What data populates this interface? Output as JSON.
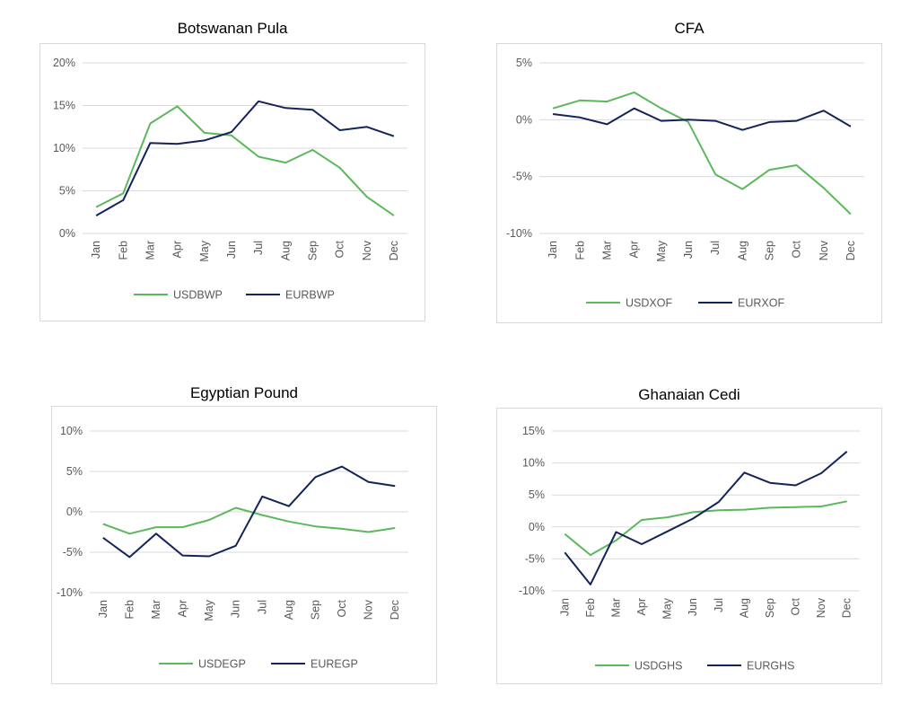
{
  "colors": {
    "usd": "#5cb85c",
    "eur": "#14235a",
    "grid": "#d9d9d9",
    "text": "#595959"
  },
  "chart_data": [
    {
      "type": "line",
      "title": "Botswanan Pula",
      "categories": [
        "Jan",
        "Feb",
        "Mar",
        "Apr",
        "May",
        "Jun",
        "Jul",
        "Aug",
        "Sep",
        "Oct",
        "Nov",
        "Dec"
      ],
      "ylim": [
        0,
        20
      ],
      "yticks": [
        0,
        5,
        10,
        15,
        20
      ],
      "ytick_labels": [
        "0%",
        "5%",
        "10%",
        "15%",
        "20%"
      ],
      "series": [
        {
          "name": "USDBWP",
          "values": [
            3.1,
            4.7,
            12.9,
            14.9,
            11.8,
            11.5,
            9.0,
            8.3,
            9.8,
            7.7,
            4.3,
            2.1
          ]
        },
        {
          "name": "EURBWP",
          "values": [
            2.1,
            3.9,
            10.6,
            10.5,
            10.9,
            11.9,
            15.5,
            14.7,
            14.5,
            12.1,
            12.5,
            11.4
          ]
        }
      ]
    },
    {
      "type": "line",
      "title": "CFA",
      "categories": [
        "Jan",
        "Feb",
        "Mar",
        "Apr",
        "May",
        "Jun",
        "Jul",
        "Aug",
        "Sep",
        "Oct",
        "Nov",
        "Dec"
      ],
      "ylim": [
        -10,
        5
      ],
      "yticks": [
        -10,
        -5,
        0,
        5
      ],
      "ytick_labels": [
        "-10%",
        "-5%",
        "0%",
        "5%"
      ],
      "series": [
        {
          "name": "USDXOF",
          "values": [
            1.0,
            1.7,
            1.6,
            2.4,
            1.0,
            -0.2,
            -4.8,
            -6.1,
            -4.4,
            -4.0,
            -6.0,
            -8.3
          ]
        },
        {
          "name": "EURXOF",
          "values": [
            0.5,
            0.2,
            -0.4,
            1.0,
            -0.1,
            0.0,
            -0.1,
            -0.9,
            -0.2,
            -0.1,
            0.8,
            -0.6
          ]
        }
      ]
    },
    {
      "type": "line",
      "title": "Egyptian Pound",
      "categories": [
        "Jan",
        "Feb",
        "Mar",
        "Apr",
        "May",
        "Jun",
        "Jul",
        "Aug",
        "Sep",
        "Oct",
        "Nov",
        "Dec"
      ],
      "ylim": [
        -10,
        10
      ],
      "yticks": [
        -10,
        -5,
        0,
        5,
        10
      ],
      "ytick_labels": [
        "-10%",
        "-5%",
        "0%",
        "5%",
        "10%"
      ],
      "series": [
        {
          "name": "USDEGP",
          "values": [
            -1.5,
            -2.7,
            -1.9,
            -1.9,
            -1.0,
            0.5,
            -0.4,
            -1.2,
            -1.8,
            -2.1,
            -2.5,
            -2.0
          ]
        },
        {
          "name": "EUREGP",
          "values": [
            -3.2,
            -5.6,
            -2.7,
            -5.4,
            -5.5,
            -4.2,
            1.9,
            0.7,
            4.3,
            5.6,
            3.7,
            3.2
          ]
        }
      ]
    },
    {
      "type": "line",
      "title": "Ghanaian Cedi",
      "categories": [
        "Jan",
        "Feb",
        "Mar",
        "Apr",
        "May",
        "Jun",
        "Jul",
        "Aug",
        "Sep",
        "Oct",
        "Nov",
        "Dec"
      ],
      "ylim": [
        -10,
        15
      ],
      "yticks": [
        -10,
        -5,
        0,
        5,
        10,
        15
      ],
      "ytick_labels": [
        "-10%",
        "-5%",
        "0%",
        "5%",
        "10%",
        "15%"
      ],
      "series": [
        {
          "name": "USDGHS",
          "values": [
            -1.1,
            -4.4,
            -2.1,
            1.1,
            1.5,
            2.3,
            2.6,
            2.7,
            3.0,
            3.1,
            3.2,
            4.0
          ]
        },
        {
          "name": "EURGHS",
          "values": [
            -4.0,
            -9.0,
            -0.8,
            -2.7,
            -0.7,
            1.3,
            3.9,
            8.5,
            6.9,
            6.5,
            8.4,
            11.8
          ]
        }
      ]
    }
  ]
}
